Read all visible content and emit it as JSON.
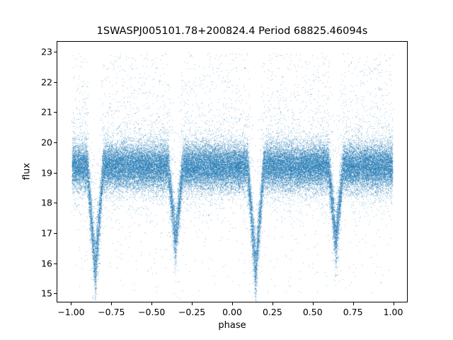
{
  "chart_data": {
    "type": "scatter",
    "title": "1SWASPJ005101.78+200824.4 Period 68825.46094s",
    "xlabel": "phase",
    "ylabel": "flux",
    "xlim": [
      -1.09,
      1.09
    ],
    "ylim": [
      14.7,
      23.35
    ],
    "x_ticks": [
      -1.0,
      -0.75,
      -0.5,
      -0.25,
      0.0,
      0.25,
      0.5,
      0.75,
      1.0
    ],
    "x_tick_labels": [
      "−1.00",
      "−0.75",
      "−0.50",
      "−0.25",
      "0.00",
      "0.25",
      "0.50",
      "0.75",
      "1.00"
    ],
    "y_ticks": [
      15,
      16,
      17,
      18,
      19,
      20,
      21,
      22,
      23
    ],
    "y_tick_labels": [
      "15",
      "16",
      "17",
      "18",
      "19",
      "20",
      "21",
      "22",
      "23"
    ],
    "grid": false,
    "legend": null,
    "marker_color": "#1f77b4",
    "marker_alpha": 0.45,
    "marker_size_px": 1,
    "n_points": 60000,
    "seed": 42,
    "band": {
      "mean_flux": 19.2,
      "sigma": 0.38,
      "halo_sigma": 0.82,
      "halo_fraction": 0.08
    },
    "eclipses": [
      {
        "phase": -0.855,
        "min_flux": 15.45,
        "half_width": 0.05
      },
      {
        "phase": -0.355,
        "min_flux": 16.5,
        "half_width": 0.045
      },
      {
        "phase": 0.145,
        "min_flux": 15.45,
        "half_width": 0.05
      },
      {
        "phase": 0.645,
        "min_flux": 16.5,
        "half_width": 0.045
      }
    ],
    "outliers": {
      "upper_fraction": 0.04,
      "upper_max_flux": 23.0,
      "lower_fraction": 0.008,
      "lower_min_flux": 15.0
    }
  }
}
